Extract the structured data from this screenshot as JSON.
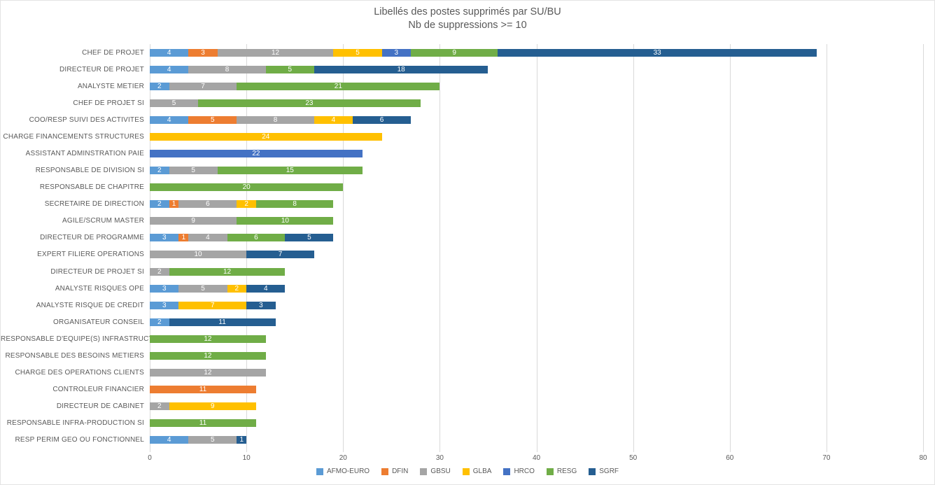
{
  "chart_data": {
    "type": "bar",
    "orientation": "horizontal",
    "stacked": true,
    "title": "Libellés des postes supprimés par SU/BU",
    "subtitle": "Nb de suppressions >= 10",
    "xlim": [
      0,
      80
    ],
    "x_ticks": [
      0,
      10,
      20,
      30,
      40,
      50,
      60,
      70,
      80
    ],
    "grid": true,
    "legend_position": "bottom-center",
    "axis_color": "#D9D9D9",
    "text_color": "#595959",
    "series": [
      {
        "name": "AFMO-EURO",
        "color": "#5B9BD5"
      },
      {
        "name": "DFIN",
        "color": "#ED7D31"
      },
      {
        "name": "GBSU",
        "color": "#A5A5A5"
      },
      {
        "name": "GLBA",
        "color": "#FFC000"
      },
      {
        "name": "HRCO",
        "color": "#4472C4"
      },
      {
        "name": "RESG",
        "color": "#70AD47"
      },
      {
        "name": "SGRF",
        "color": "#255E91"
      }
    ],
    "rows": [
      {
        "label": "CHEF DE PROJET",
        "segments": [
          [
            "AFMO-EURO",
            4
          ],
          [
            "DFIN",
            3
          ],
          [
            "GBSU",
            12
          ],
          [
            "GLBA",
            5
          ],
          [
            "HRCO",
            3
          ],
          [
            "RESG",
            9
          ],
          [
            "SGRF",
            33
          ]
        ]
      },
      {
        "label": "DIRECTEUR DE PROJET",
        "segments": [
          [
            "AFMO-EURO",
            4
          ],
          [
            "GBSU",
            8
          ],
          [
            "RESG",
            5
          ],
          [
            "SGRF",
            18
          ]
        ]
      },
      {
        "label": "ANALYSTE METIER",
        "segments": [
          [
            "AFMO-EURO",
            2
          ],
          [
            "GBSU",
            7
          ],
          [
            "RESG",
            21
          ]
        ]
      },
      {
        "label": "CHEF DE PROJET SI",
        "segments": [
          [
            "GBSU",
            5
          ],
          [
            "RESG",
            23
          ]
        ]
      },
      {
        "label": "COO/RESP SUIVI DES ACTIVITES",
        "segments": [
          [
            "AFMO-EURO",
            4
          ],
          [
            "DFIN",
            5
          ],
          [
            "GBSU",
            8
          ],
          [
            "GLBA",
            4
          ],
          [
            "SGRF",
            6
          ]
        ]
      },
      {
        "label": "CHARGE FINANCEMENTS STRUCTURES",
        "segments": [
          [
            "GLBA",
            24
          ]
        ]
      },
      {
        "label": "ASSISTANT ADMINSTRATION PAIE",
        "segments": [
          [
            "HRCO",
            22
          ]
        ]
      },
      {
        "label": "RESPONSABLE DE DIVISION SI",
        "segments": [
          [
            "AFMO-EURO",
            2
          ],
          [
            "GBSU",
            5
          ],
          [
            "RESG",
            15
          ]
        ]
      },
      {
        "label": "RESPONSABLE DE CHAPITRE",
        "segments": [
          [
            "RESG",
            20
          ]
        ]
      },
      {
        "label": "SECRETAIRE DE DIRECTION",
        "segments": [
          [
            "AFMO-EURO",
            2
          ],
          [
            "DFIN",
            1
          ],
          [
            "GBSU",
            6
          ],
          [
            "GLBA",
            2
          ],
          [
            "RESG",
            8
          ]
        ]
      },
      {
        "label": "AGILE/SCRUM MASTER",
        "segments": [
          [
            "GBSU",
            9
          ],
          [
            "RESG",
            10
          ]
        ]
      },
      {
        "label": "DIRECTEUR DE PROGRAMME",
        "segments": [
          [
            "AFMO-EURO",
            3
          ],
          [
            "DFIN",
            1
          ],
          [
            "GBSU",
            4
          ],
          [
            "RESG",
            6
          ],
          [
            "SGRF",
            5
          ]
        ]
      },
      {
        "label": "EXPERT FILIERE OPERATIONS",
        "segments": [
          [
            "GBSU",
            10
          ],
          [
            "SGRF",
            7
          ]
        ]
      },
      {
        "label": "DIRECTEUR DE PROJET SI",
        "segments": [
          [
            "GBSU",
            2
          ],
          [
            "RESG",
            12
          ]
        ]
      },
      {
        "label": "ANALYSTE RISQUES OPE",
        "segments": [
          [
            "AFMO-EURO",
            3
          ],
          [
            "GBSU",
            5
          ],
          [
            "GLBA",
            2
          ],
          [
            "SGRF",
            4
          ]
        ]
      },
      {
        "label": "ANALYSTE RISQUE DE CREDIT",
        "segments": [
          [
            "AFMO-EURO",
            3
          ],
          [
            "GLBA",
            7
          ],
          [
            "SGRF",
            3
          ]
        ]
      },
      {
        "label": "ORGANISATEUR CONSEIL",
        "segments": [
          [
            "AFMO-EURO",
            2
          ],
          [
            "SGRF",
            11
          ]
        ]
      },
      {
        "label": "RESPONSABLE D'EQUIPE(S) INFRASTRUCTURE",
        "segments": [
          [
            "RESG",
            12
          ]
        ]
      },
      {
        "label": "RESPONSABLE DES BESOINS METIERS",
        "segments": [
          [
            "RESG",
            12
          ]
        ]
      },
      {
        "label": "CHARGE DES OPERATIONS CLIENTS",
        "segments": [
          [
            "GBSU",
            12
          ]
        ]
      },
      {
        "label": "CONTROLEUR FINANCIER",
        "segments": [
          [
            "DFIN",
            11
          ]
        ]
      },
      {
        "label": "DIRECTEUR DE CABINET",
        "segments": [
          [
            "GBSU",
            2
          ],
          [
            "GLBA",
            9
          ]
        ]
      },
      {
        "label": "RESPONSABLE INFRA-PRODUCTION SI",
        "segments": [
          [
            "RESG",
            11
          ]
        ]
      },
      {
        "label": "RESP PERIM GEO OU FONCTIONNEL",
        "segments": [
          [
            "AFMO-EURO",
            4
          ],
          [
            "GBSU",
            5
          ],
          [
            "SGRF",
            1
          ]
        ]
      }
    ]
  }
}
